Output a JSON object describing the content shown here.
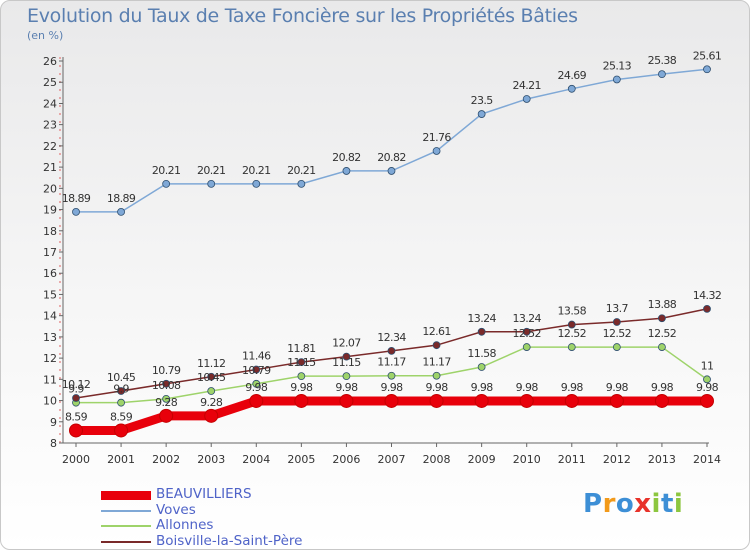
{
  "header": {
    "title": "Evolution du Taux de Taxe Foncière sur les Propriétés Bâties",
    "unit": "(en %)"
  },
  "chart_data": {
    "type": "line",
    "title": "Evolution du Taux de Taxe Foncière sur les Propriétés Bâties",
    "ylabel": "(en %)",
    "xlabel": "",
    "x": [
      2000,
      2001,
      2002,
      2003,
      2004,
      2005,
      2006,
      2007,
      2008,
      2009,
      2010,
      2011,
      2012,
      2013,
      2014
    ],
    "ylim": [
      8,
      26
    ],
    "yticks": [
      8,
      9,
      10,
      11,
      12,
      13,
      14,
      15,
      16,
      17,
      18,
      19,
      20,
      21,
      22,
      23,
      24,
      25,
      26
    ],
    "grid": false,
    "legend_position": "bottom-left",
    "series": [
      {
        "name": "BEAUVILLIERS",
        "color": "#e8000b",
        "values": [
          8.59,
          8.59,
          9.28,
          9.28,
          9.98,
          9.98,
          9.98,
          9.98,
          9.98,
          9.98,
          9.98,
          9.98,
          9.98,
          9.98,
          9.98
        ],
        "labels": [
          "8.59",
          "8.59",
          "9.28",
          "9.28",
          "9.98",
          "9.98",
          "9.98",
          "9.98",
          "9.98",
          "9.98",
          "9.98",
          "9.98",
          "9.98",
          "9.98",
          "9.98"
        ]
      },
      {
        "name": "Voves",
        "color": "#7fa8d6",
        "values": [
          18.89,
          18.89,
          20.21,
          20.21,
          20.21,
          20.21,
          20.82,
          20.82,
          21.76,
          23.5,
          24.21,
          24.69,
          25.13,
          25.38,
          25.61
        ],
        "labels": [
          "18.89",
          "18.89",
          "20.21",
          "20.21",
          "20.21",
          "20.21",
          "20.82",
          "20.82",
          "21.76",
          "23.5",
          "24.21",
          "24.69",
          "25.13",
          "25.38",
          "25.61"
        ]
      },
      {
        "name": "Allonnes",
        "color": "#9ed36a",
        "values": [
          9.9,
          9.9,
          10.08,
          10.45,
          10.79,
          11.15,
          11.15,
          11.17,
          11.17,
          11.58,
          12.52,
          12.52,
          12.52,
          12.52,
          11
        ],
        "labels": [
          "9.9",
          "9.9",
          "10.08",
          "10.45",
          "10.79",
          "11.15",
          "11.15",
          "11.17",
          "11.17",
          "11.58",
          "12.52",
          "12.52",
          "12.52",
          "12.52",
          "11"
        ]
      },
      {
        "name": "Boisville-la-Saint-Père",
        "color": "#7a2a2a",
        "values": [
          10.12,
          10.45,
          10.79,
          11.12,
          11.46,
          11.81,
          12.07,
          12.34,
          12.61,
          13.24,
          13.24,
          13.58,
          13.7,
          13.88,
          14.32
        ],
        "labels": [
          "10.12",
          "10.45",
          "10.79",
          "11.12",
          "11.46",
          "11.81",
          "12.07",
          "12.34",
          "12.61",
          "13.24",
          "13.24",
          "13.58",
          "13.7",
          "13.88",
          "14.32"
        ]
      }
    ]
  },
  "legend": [
    {
      "label": "BEAUVILLIERS",
      "color": "#e8000b"
    },
    {
      "label": "Voves",
      "color": "#7fa8d6"
    },
    {
      "label": "Allonnes",
      "color": "#9ed36a"
    },
    {
      "label": "Boisville-la-Saint-Père",
      "color": "#7a2a2a"
    }
  ],
  "brand": {
    "letters": [
      "P",
      "r",
      "o",
      "x",
      "i",
      "t",
      "i"
    ],
    "colors": [
      "#3d8fd6",
      "#f29a1a",
      "#3d8fd6",
      "#e8322a",
      "#8cc63f",
      "#3d8fd6",
      "#8cc63f"
    ]
  }
}
